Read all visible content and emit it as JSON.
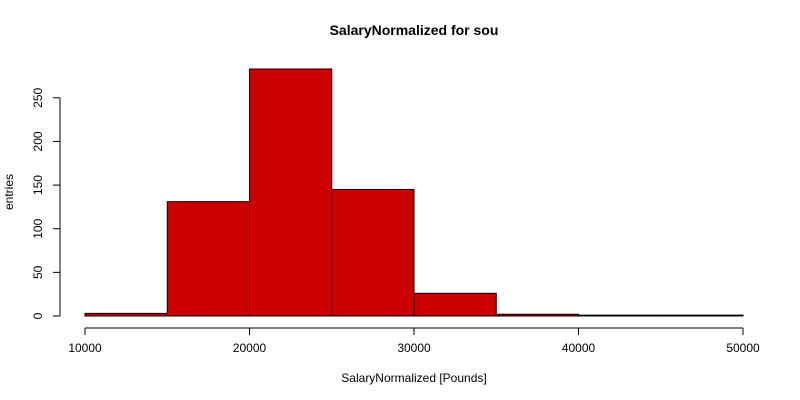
{
  "chart_data": {
    "type": "bar",
    "title": "SalaryNormalized for sou",
    "xlabel": "SalaryNormalized [Pounds]",
    "ylabel": "entries",
    "bins": [
      {
        "x0": 10000,
        "x1": 15000,
        "count": 3
      },
      {
        "x0": 15000,
        "x1": 20000,
        "count": 131
      },
      {
        "x0": 20000,
        "x1": 25000,
        "count": 283
      },
      {
        "x0": 25000,
        "x1": 30000,
        "count": 145
      },
      {
        "x0": 30000,
        "x1": 35000,
        "count": 26
      },
      {
        "x0": 35000,
        "x1": 40000,
        "count": 2
      },
      {
        "x0": 40000,
        "x1": 45000,
        "count": 1
      },
      {
        "x0": 45000,
        "x1": 50000,
        "count": 1
      }
    ],
    "xlim": [
      10000,
      50000
    ],
    "ylim": [
      0,
      283
    ],
    "x_ticks": [
      "10000",
      "20000",
      "30000",
      "40000",
      "50000"
    ],
    "y_ticks": [
      "0",
      "50",
      "100",
      "150",
      "200",
      "250"
    ],
    "bar_color": "#CC0000",
    "grid": false
  }
}
